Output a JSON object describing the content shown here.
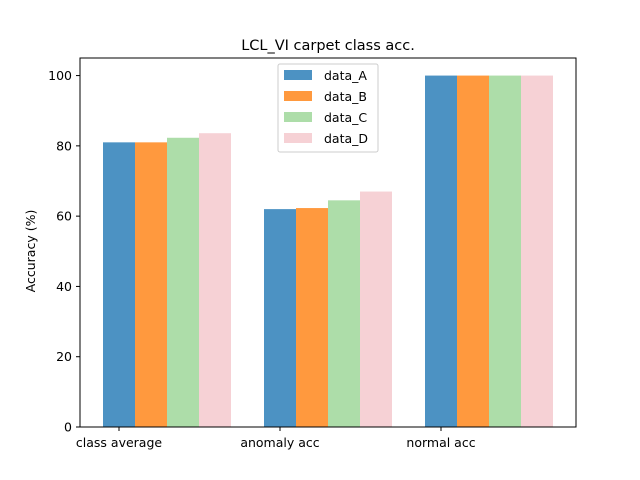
{
  "chart_data": {
    "type": "bar",
    "title": "LCL_VI carpet class acc.",
    "xlabel": "",
    "ylabel": "Accuracy (%)",
    "categories": [
      "class average",
      "anomaly acc",
      "normal acc"
    ],
    "series": [
      {
        "name": "data_A",
        "color": "#1f77b4",
        "values": [
          81.0,
          62.0,
          100.0
        ]
      },
      {
        "name": "data_B",
        "color": "#ff7f0e",
        "values": [
          81.0,
          62.3,
          100.0
        ]
      },
      {
        "name": "data_C",
        "color": "#98d494",
        "values": [
          82.3,
          64.5,
          100.0
        ]
      },
      {
        "name": "data_D",
        "color": "#f4c6ca",
        "values": [
          83.6,
          67.0,
          100.0
        ]
      }
    ],
    "ylim": [
      0,
      105
    ],
    "yticks": [
      0,
      20,
      40,
      60,
      80,
      100
    ],
    "legend_position": "top-center",
    "grid": false
  }
}
